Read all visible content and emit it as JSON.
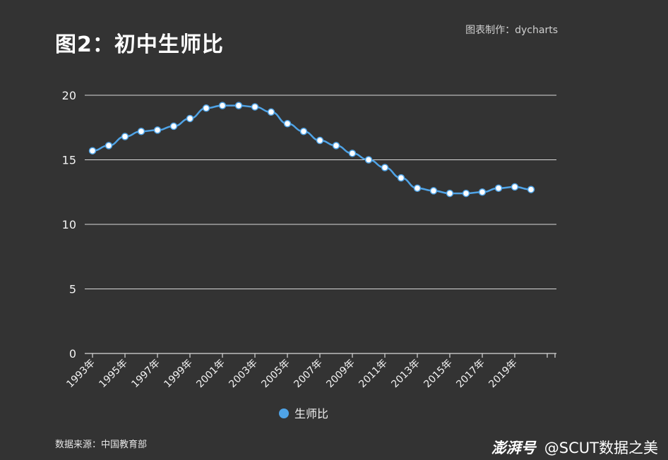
{
  "title": "图2：初中生师比",
  "maker": "图表制作：dycharts",
  "source": "数据来源：中国教育部",
  "watermark": {
    "brand": "澎湃号",
    "account": "@SCUT数据之美"
  },
  "colors": {
    "background": "#333333",
    "line": "#4fa3e6",
    "point_fill": "#ffffff",
    "grid": "#d9d9d9"
  },
  "chart_data": {
    "type": "line",
    "title": "图2：初中生师比",
    "xlabel": "",
    "ylabel": "",
    "ylim": [
      0,
      20
    ],
    "yticks": [
      0,
      5,
      10,
      15,
      20
    ],
    "grid": true,
    "legend_position": "bottom",
    "x": [
      "1993年",
      "1994年",
      "1995年",
      "1996年",
      "1997年",
      "1998年",
      "1999年",
      "2000年",
      "2001年",
      "2002年",
      "2003年",
      "2004年",
      "2005年",
      "2006年",
      "2007年",
      "2008年",
      "2009年",
      "2010年",
      "2011年",
      "2012年",
      "2013年",
      "2014年",
      "2015年",
      "2016年",
      "2017年",
      "2018年",
      "2019年",
      "2020年"
    ],
    "x_tick_labels": [
      "1993年",
      "1995年",
      "1997年",
      "1999年",
      "2001年",
      "2003年",
      "2005年",
      "2007年",
      "2009年",
      "2011年",
      "2013年",
      "2015年",
      "2017年",
      "2019年"
    ],
    "series": [
      {
        "name": "生师比",
        "values": [
          15.7,
          16.1,
          16.8,
          17.2,
          17.3,
          17.6,
          18.2,
          19.0,
          19.2,
          19.2,
          19.1,
          18.7,
          17.8,
          17.2,
          16.5,
          16.1,
          15.5,
          15.0,
          14.4,
          13.6,
          12.8,
          12.6,
          12.4,
          12.4,
          12.5,
          12.8,
          12.9,
          12.7
        ]
      }
    ]
  }
}
